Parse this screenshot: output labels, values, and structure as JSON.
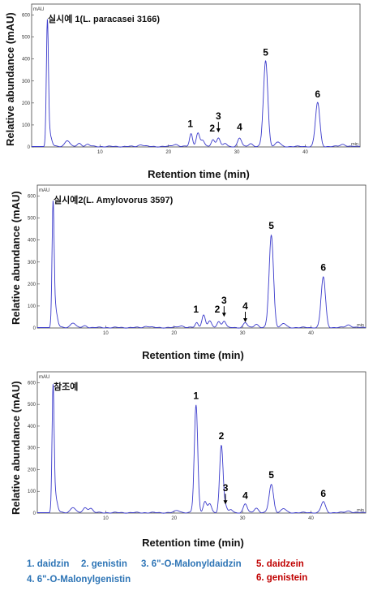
{
  "chart_data": [
    {
      "type": "line",
      "title": "실시예 1(L. paracasei 3166)",
      "ylabel": "Relative abundance (mAU)",
      "xlabel": "Retention time (min)",
      "y_unit": "mAU",
      "x_unit": "min",
      "xlim": [
        0,
        48
      ],
      "ylim": [
        0,
        650
      ],
      "xticks": [
        10,
        20,
        30,
        40
      ],
      "yticks": [
        0,
        100,
        200,
        300,
        400,
        500,
        600
      ],
      "line_color": "#3a3acb",
      "peaks": [
        {
          "x": 2.3,
          "y": 545,
          "w": 0.15
        },
        {
          "x": 2.6,
          "y": 60,
          "w": 0.3
        },
        {
          "x": 5.2,
          "y": 28,
          "w": 0.35
        },
        {
          "x": 7.0,
          "y": 14,
          "w": 0.3
        },
        {
          "x": 8.2,
          "y": 10,
          "w": 0.3
        },
        {
          "x": 16.0,
          "y": 8,
          "w": 0.4
        },
        {
          "x": 21.0,
          "y": 10,
          "w": 0.4
        },
        {
          "x": 23.3,
          "y": 58,
          "w": 0.22
        },
        {
          "x": 24.3,
          "y": 62,
          "w": 0.25
        },
        {
          "x": 25.0,
          "y": 28,
          "w": 0.25
        },
        {
          "x": 26.5,
          "y": 32,
          "w": 0.25
        },
        {
          "x": 27.3,
          "y": 40,
          "w": 0.25
        },
        {
          "x": 28.3,
          "y": 14,
          "w": 0.25
        },
        {
          "x": 30.4,
          "y": 38,
          "w": 0.28
        },
        {
          "x": 32.0,
          "y": 14,
          "w": 0.3
        },
        {
          "x": 34.2,
          "y": 390,
          "w": 0.32
        },
        {
          "x": 36.0,
          "y": 20,
          "w": 0.35
        },
        {
          "x": 41.8,
          "y": 200,
          "w": 0.32
        },
        {
          "x": 45.5,
          "y": 10,
          "w": 0.4
        }
      ],
      "labels": [
        {
          "text": "1",
          "x": 23.2,
          "y": 90,
          "arrow": false
        },
        {
          "text": "2",
          "x": 26.4,
          "y": 70,
          "arrow": false
        },
        {
          "text": "3",
          "x": 27.3,
          "y": 125,
          "arrow": true
        },
        {
          "text": "4",
          "x": 30.4,
          "y": 75,
          "arrow": false
        },
        {
          "text": "5",
          "x": 34.2,
          "y": 415,
          "arrow": false
        },
        {
          "text": "6",
          "x": 41.8,
          "y": 225,
          "arrow": false
        }
      ]
    },
    {
      "type": "line",
      "title": "실시예2(L. Amylovorus 3597)",
      "ylabel": "Relative abundance (mAU)",
      "xlabel": "Retention time (min)",
      "y_unit": "mAU",
      "x_unit": "min",
      "xlim": [
        0,
        48
      ],
      "ylim": [
        0,
        650
      ],
      "xticks": [
        10,
        20,
        30,
        40
      ],
      "yticks": [
        0,
        100,
        200,
        300,
        400,
        500,
        600
      ],
      "line_color": "#3a3acb",
      "peaks": [
        {
          "x": 2.3,
          "y": 525,
          "w": 0.15
        },
        {
          "x": 2.6,
          "y": 90,
          "w": 0.3
        },
        {
          "x": 5.2,
          "y": 22,
          "w": 0.35
        },
        {
          "x": 7.0,
          "y": 8,
          "w": 0.3
        },
        {
          "x": 16.0,
          "y": 6,
          "w": 0.4
        },
        {
          "x": 21.0,
          "y": 8,
          "w": 0.4
        },
        {
          "x": 23.3,
          "y": 22,
          "w": 0.22
        },
        {
          "x": 24.3,
          "y": 58,
          "w": 0.25
        },
        {
          "x": 25.2,
          "y": 30,
          "w": 0.25
        },
        {
          "x": 26.5,
          "y": 28,
          "w": 0.25
        },
        {
          "x": 27.3,
          "y": 30,
          "w": 0.25
        },
        {
          "x": 30.4,
          "y": 22,
          "w": 0.28
        },
        {
          "x": 32.0,
          "y": 16,
          "w": 0.3
        },
        {
          "x": 34.2,
          "y": 420,
          "w": 0.32
        },
        {
          "x": 36.0,
          "y": 18,
          "w": 0.35
        },
        {
          "x": 41.8,
          "y": 230,
          "w": 0.32
        },
        {
          "x": 45.5,
          "y": 12,
          "w": 0.4
        }
      ],
      "labels": [
        {
          "text": "1",
          "x": 23.2,
          "y": 70,
          "arrow": false
        },
        {
          "text": "2",
          "x": 26.3,
          "y": 70,
          "arrow": false
        },
        {
          "text": "3",
          "x": 27.3,
          "y": 110,
          "arrow": true
        },
        {
          "text": "4",
          "x": 30.4,
          "y": 85,
          "arrow": true
        },
        {
          "text": "5",
          "x": 34.2,
          "y": 450,
          "arrow": false
        },
        {
          "text": "6",
          "x": 41.8,
          "y": 260,
          "arrow": false
        }
      ]
    },
    {
      "type": "line",
      "title": "참조예",
      "ylabel": "Relative abundance (mAU)",
      "xlabel": "Retention time (min)",
      "y_unit": "mAU",
      "x_unit": "min",
      "xlim": [
        0,
        48
      ],
      "ylim": [
        0,
        650
      ],
      "xticks": [
        10,
        20,
        30,
        40
      ],
      "yticks": [
        0,
        100,
        200,
        300,
        400,
        500,
        600
      ],
      "line_color": "#3a3acb",
      "peaks": [
        {
          "x": 2.3,
          "y": 545,
          "w": 0.15
        },
        {
          "x": 2.6,
          "y": 80,
          "w": 0.3
        },
        {
          "x": 5.2,
          "y": 25,
          "w": 0.35
        },
        {
          "x": 7.0,
          "y": 22,
          "w": 0.3
        },
        {
          "x": 7.8,
          "y": 20,
          "w": 0.3
        },
        {
          "x": 20.5,
          "y": 10,
          "w": 0.4
        },
        {
          "x": 23.2,
          "y": 495,
          "w": 0.25
        },
        {
          "x": 24.5,
          "y": 50,
          "w": 0.25
        },
        {
          "x": 25.2,
          "y": 40,
          "w": 0.25
        },
        {
          "x": 26.9,
          "y": 310,
          "w": 0.25
        },
        {
          "x": 27.5,
          "y": 28,
          "w": 0.22
        },
        {
          "x": 28.3,
          "y": 14,
          "w": 0.25
        },
        {
          "x": 30.4,
          "y": 40,
          "w": 0.28
        },
        {
          "x": 32.0,
          "y": 22,
          "w": 0.3
        },
        {
          "x": 34.2,
          "y": 130,
          "w": 0.32
        },
        {
          "x": 36.0,
          "y": 18,
          "w": 0.35
        },
        {
          "x": 41.8,
          "y": 50,
          "w": 0.32
        },
        {
          "x": 45.5,
          "y": 8,
          "w": 0.4
        }
      ],
      "labels": [
        {
          "text": "1",
          "x": 23.2,
          "y": 525,
          "arrow": false
        },
        {
          "text": "2",
          "x": 26.9,
          "y": 340,
          "arrow": false
        },
        {
          "text": "3",
          "x": 27.5,
          "y": 100,
          "arrow": true
        },
        {
          "text": "4",
          "x": 30.4,
          "y": 65,
          "arrow": false
        },
        {
          "text": "5",
          "x": 34.2,
          "y": 160,
          "arrow": false
        },
        {
          "text": "6",
          "x": 41.8,
          "y": 75,
          "arrow": false
        }
      ]
    }
  ],
  "legend": [
    {
      "text": "1. daidzin",
      "color": "#2e75b6"
    },
    {
      "text": "2. genistin",
      "color": "#2e75b6"
    },
    {
      "text": "3. 6\"-O-Malonyldaidzin",
      "color": "#2e75b6"
    },
    {
      "text": "5. daidzein",
      "color": "#c00000"
    },
    {
      "text": "4. 6\"-O-Malonylgenistin",
      "color": "#2e75b6"
    },
    {
      "text": "6. genistein",
      "color": "#c00000"
    }
  ]
}
